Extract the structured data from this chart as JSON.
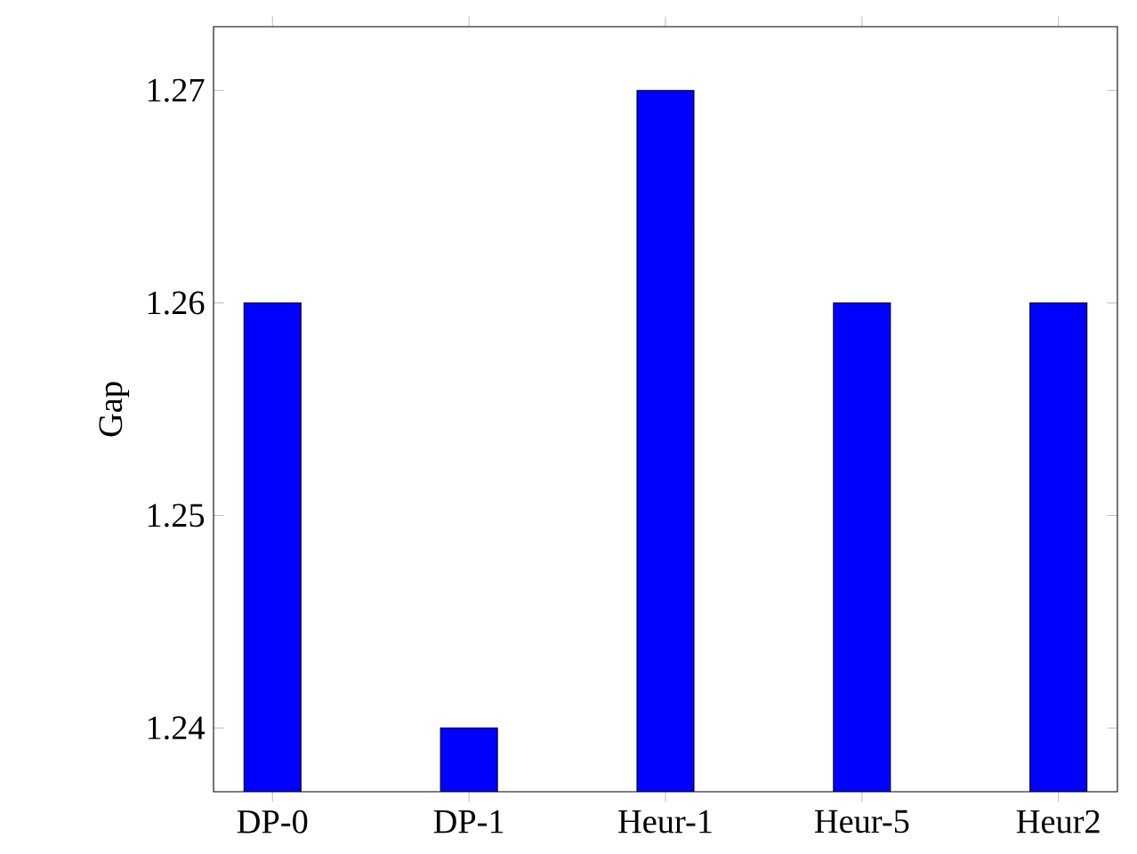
{
  "chart_data": {
    "type": "bar",
    "ylabel": "Gap",
    "categories": [
      "DP-0",
      "DP-1",
      "Heur-1",
      "Heur-5",
      "Heur2"
    ],
    "values": [
      1.26,
      1.24,
      1.27,
      1.26,
      1.26
    ],
    "color": "#0000ff",
    "ylim": [
      1.237,
      1.273
    ],
    "yticks": [
      1.24,
      1.25,
      1.26,
      1.27
    ],
    "grid": false
  }
}
